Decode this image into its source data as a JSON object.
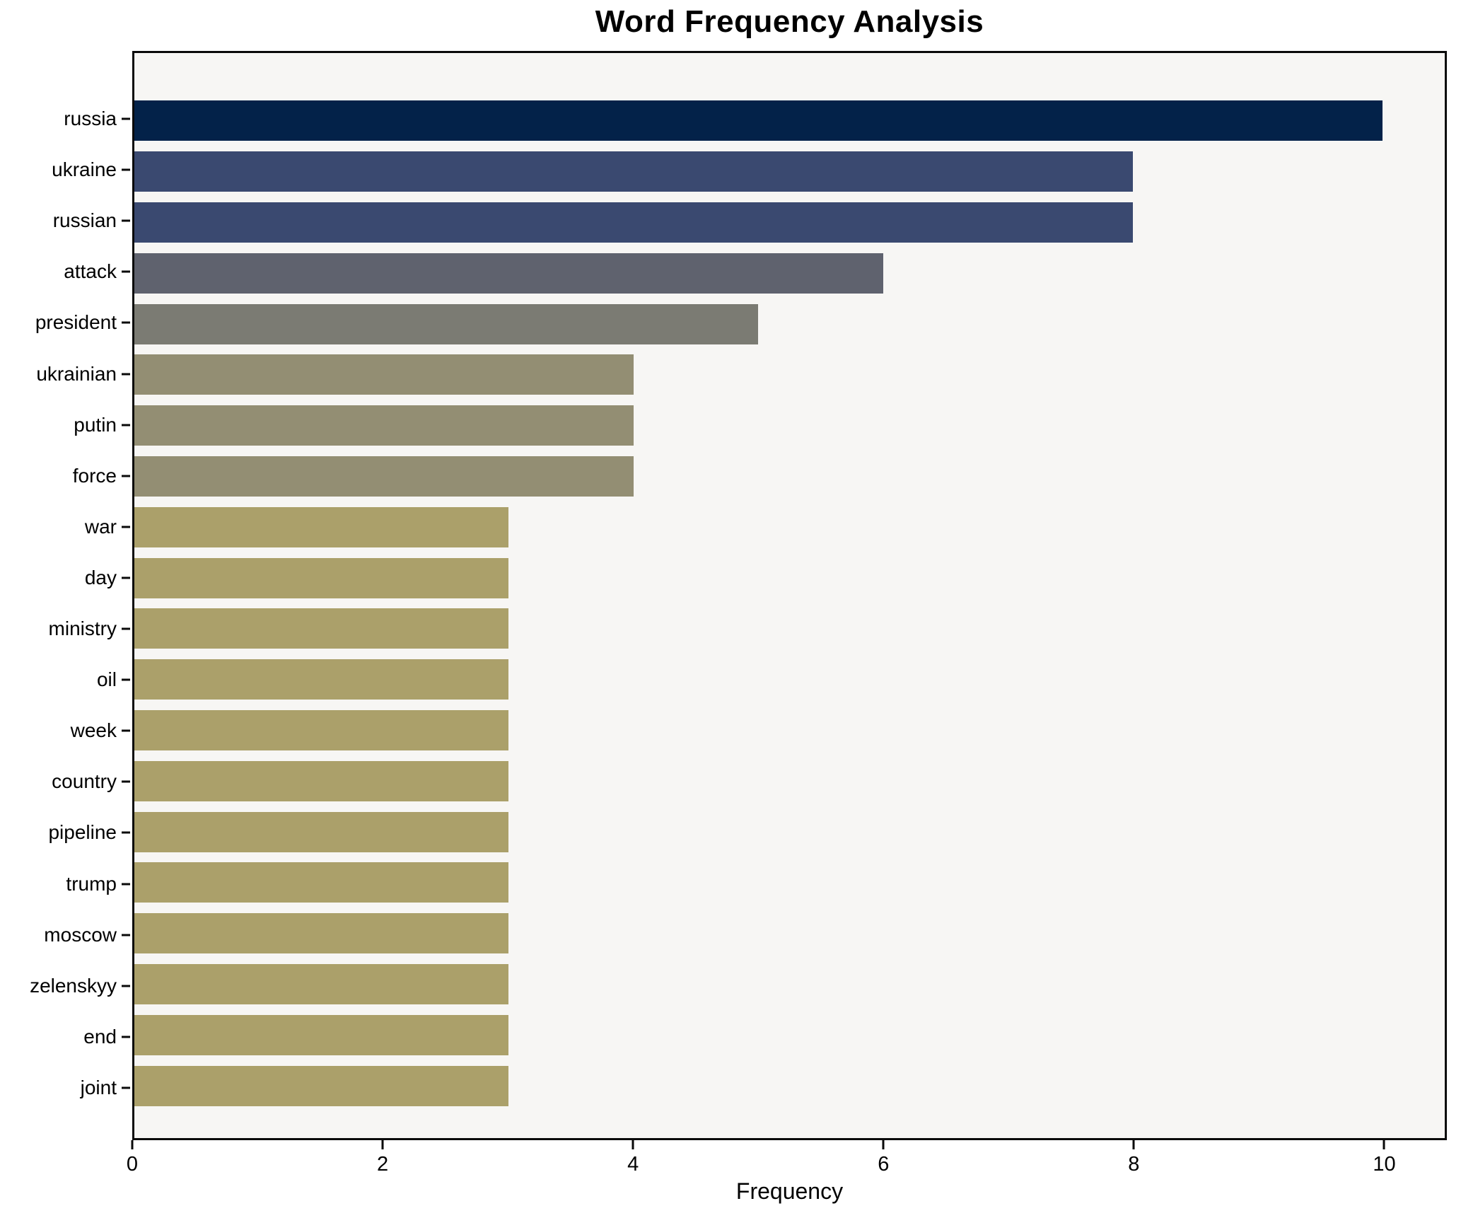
{
  "title": "Word Frequency Analysis",
  "xlabel": "Frequency",
  "chart_data": {
    "type": "bar",
    "orientation": "horizontal",
    "title": "Word Frequency Analysis",
    "xlabel": "Frequency",
    "ylabel": "",
    "categories": [
      "russia",
      "ukraine",
      "russian",
      "attack",
      "president",
      "ukrainian",
      "putin",
      "force",
      "war",
      "day",
      "ministry",
      "oil",
      "week",
      "country",
      "pipeline",
      "trump",
      "moscow",
      "zelenskyy",
      "end",
      "joint"
    ],
    "values": [
      10,
      8,
      8,
      6,
      5,
      4,
      4,
      4,
      3,
      3,
      3,
      3,
      3,
      3,
      3,
      3,
      3,
      3,
      3,
      3
    ],
    "bar_colors": [
      "#032249",
      "#3a4970",
      "#3a4970",
      "#5f626e",
      "#7b7b73",
      "#938e73",
      "#938e73",
      "#938e73",
      "#aba06a",
      "#aba06a",
      "#aba06a",
      "#aba06a",
      "#aba06a",
      "#aba06a",
      "#aba06a",
      "#aba06a",
      "#aba06a",
      "#aba06a",
      "#aba06a",
      "#aba06a"
    ],
    "xlim": [
      0,
      10.5
    ],
    "xticks": [
      0,
      2,
      4,
      6,
      8,
      10
    ],
    "grid": false,
    "legend": false,
    "plot_bg": "#f7f6f4",
    "page_bg": "#ffffff",
    "bar_height_ratio": 0.8
  }
}
